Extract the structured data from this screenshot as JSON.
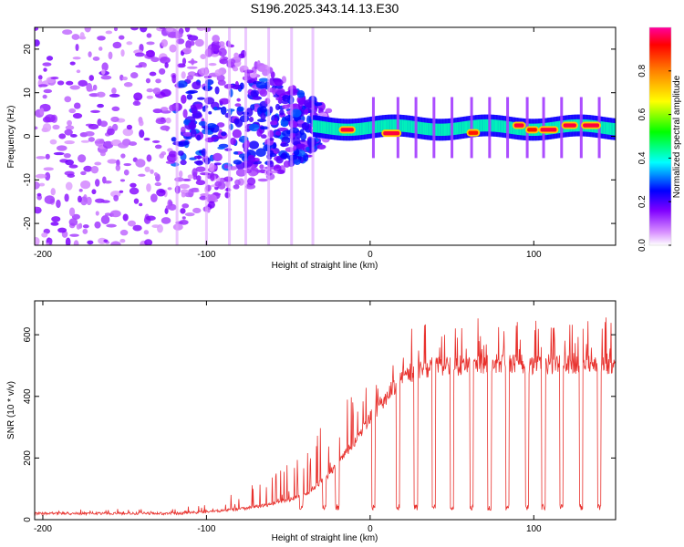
{
  "title": "S196.2025.343.14.13.E30",
  "chart_data": [
    {
      "type": "heatmap",
      "panel": "top",
      "xlabel": "Height of straight line (km)",
      "ylabel": "Frequency (Hz)",
      "xlim": [
        -205,
        150
      ],
      "ylim": [
        -25,
        25
      ],
      "xticks": [
        -200,
        -100,
        0,
        100
      ],
      "xtick_labels": [
        "-200",
        "-100",
        "0",
        "100"
      ],
      "yticks": [
        -20,
        -10,
        0,
        10,
        20
      ],
      "ytick_labels": [
        "-20",
        "-10",
        "0",
        "10",
        "20"
      ],
      "colorbar": {
        "label": "Normalized spectral amplitude",
        "range": [
          0,
          1
        ],
        "ticks": [
          0.0,
          0.2,
          0.4,
          0.6,
          0.8
        ],
        "tick_labels": [
          "0.0",
          "0.2",
          "0.4",
          "0.6",
          "0.8"
        ],
        "colors": [
          "#ffffff",
          "#d890ff",
          "#8000ff",
          "#0000ff",
          "#00ffff",
          "#00ff00",
          "#ffff00",
          "#ff8000",
          "#ff0000",
          "#ff00a0"
        ]
      },
      "ridge": {
        "description": "narrow high-amplitude band near 1-3 Hz for heights above about -30 km",
        "x_start": -30,
        "x_end": 150,
        "freq_center": 2
      },
      "hot_segments": [
        {
          "x": [
            -18,
            -10
          ],
          "freq": 1.5,
          "amplitude": 0.95
        },
        {
          "x": [
            8,
            18
          ],
          "freq": 0.7,
          "amplitude": 0.95
        },
        {
          "x": [
            60,
            66
          ],
          "freq": 0.8,
          "amplitude": 0.9
        },
        {
          "x": [
            88,
            94
          ],
          "freq": 2.5,
          "amplitude": 0.95
        },
        {
          "x": [
            96,
            102
          ],
          "freq": 1.5,
          "amplitude": 0.9
        },
        {
          "x": [
            104,
            114
          ],
          "freq": 1.5,
          "amplitude": 0.95
        },
        {
          "x": [
            118,
            126
          ],
          "freq": 2.5,
          "amplitude": 0.95
        },
        {
          "x": [
            130,
            140
          ],
          "freq": 2.5,
          "amplitude": 0.95
        }
      ]
    },
    {
      "type": "line",
      "panel": "bottom",
      "xlabel": "Height of straight line (km)",
      "ylabel": "SNR (10 * v/v)",
      "xlim": [
        -205,
        150
      ],
      "ylim": [
        0,
        710
      ],
      "xticks": [
        -200,
        -100,
        0,
        100
      ],
      "xtick_labels": [
        "-200",
        "-100",
        "0",
        "100"
      ],
      "yticks": [
        0,
        200,
        400,
        600
      ],
      "ytick_labels": [
        "0",
        "200",
        "400",
        "600"
      ],
      "color": "#e8302c",
      "envelope": {
        "x": [
          -205,
          -120,
          -100,
          -80,
          -60,
          -40,
          -30,
          -20,
          -10,
          0,
          10,
          20,
          40,
          60,
          80,
          100,
          120,
          150
        ],
        "baseline": [
          20,
          20,
          25,
          35,
          50,
          80,
          120,
          180,
          250,
          330,
          400,
          470,
          500,
          500,
          505,
          505,
          505,
          505
        ],
        "peak": [
          35,
          35,
          60,
          110,
          150,
          230,
          300,
          380,
          430,
          500,
          560,
          640,
          650,
          650,
          660,
          690,
          650,
          660
        ]
      },
      "dropouts_x": [
        -42,
        -28,
        -20,
        2,
        17,
        28,
        39,
        50,
        62,
        73,
        84,
        96,
        106,
        117,
        129,
        140
      ],
      "dropout_level": 30
    }
  ]
}
